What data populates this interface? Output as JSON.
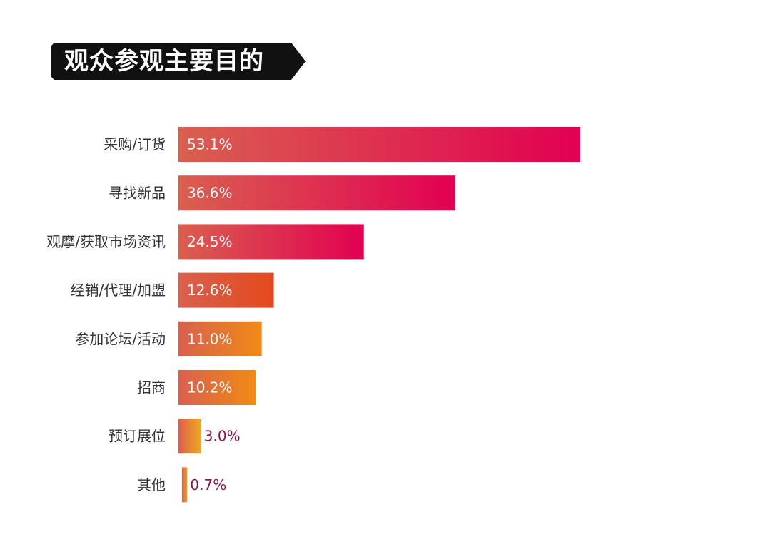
{
  "title": "观众参观主要目的",
  "colors": {
    "title_bg": "#111111",
    "label": "#333333",
    "value_outside": "#8a1650",
    "value_inside": "#ffffff",
    "grad_left": "#d9604f",
    "grad_right_high": "#e20052",
    "grad_right_mid": "#e44a1c",
    "grad_right_low": "#f08a14",
    "grad_right_tiny": "#f2a81e"
  },
  "chart_data": {
    "type": "bar",
    "orientation": "horizontal",
    "categories": [
      "采购/订货",
      "寻找新品",
      "观摩/获取市场资讯",
      "经销/代理/加盟",
      "参加论坛/活动",
      "招商",
      "预订展位",
      "其他"
    ],
    "values": [
      53.1,
      36.6,
      24.5,
      12.6,
      11.0,
      10.2,
      3.0,
      0.7
    ],
    "value_labels": [
      "53.1%",
      "36.6%",
      "24.5%",
      "12.6%",
      "11.0%",
      "10.2%",
      "3.0%",
      "0.7%"
    ],
    "unit": "%",
    "xlim": [
      0,
      53.1
    ],
    "grid": false,
    "legend": "none"
  }
}
